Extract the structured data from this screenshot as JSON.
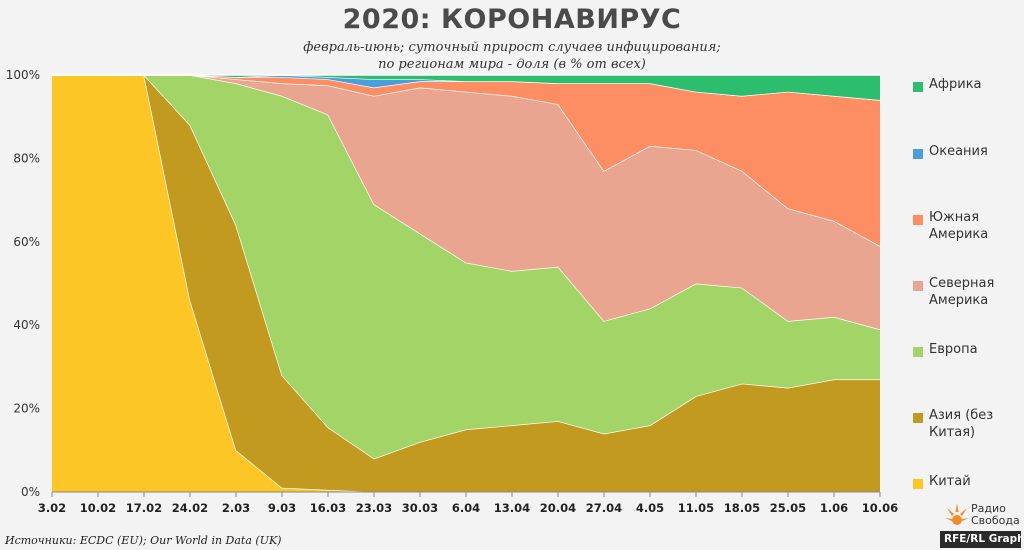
{
  "title": "2020: КОРОНАВИРУС",
  "subtitle_line1": "февраль-июнь; суточный прирост случаев инфицирования;",
  "subtitle_line2": "по регионам мира - доля (в % от всех)",
  "source": "Источники: ECDC (EU); Our World in Data (UK)",
  "logo": {
    "line1": "Радио",
    "line2": "Свобода",
    "bar": "RFE/RL Graphics"
  },
  "chart_data": {
    "type": "area",
    "stacked": true,
    "x": [
      "3.02",
      "10.02",
      "17.02",
      "24.02",
      "2.03",
      "9.03",
      "16.03",
      "23.03",
      "30.03",
      "6.04",
      "13.04",
      "20.04",
      "27.04",
      "4.05",
      "11.05",
      "18.05",
      "25.05",
      "1.06",
      "10.06"
    ],
    "ylim": [
      0,
      100
    ],
    "yticks": [
      "0%",
      "20%",
      "40%",
      "60%",
      "80%",
      "100%"
    ],
    "grid": true,
    "legend_position": "right",
    "series": [
      {
        "name": "Китай",
        "color": "#fcc627",
        "values": [
          100,
          100,
          100,
          46,
          10,
          1,
          0.5,
          0,
          0,
          0,
          0,
          0,
          0,
          0,
          0,
          0,
          0,
          0,
          0
        ]
      },
      {
        "name": "Азия (без Китая)",
        "color": "#c29a20",
        "values": [
          0,
          0,
          0,
          42,
          54,
          27,
          15,
          8,
          12,
          15,
          16,
          17,
          14,
          16,
          23,
          26,
          25,
          27,
          27
        ]
      },
      {
        "name": "Европа",
        "color": "#a3d468",
        "values": [
          0,
          0,
          0,
          12,
          34,
          67,
          75,
          61,
          50,
          40,
          37,
          37,
          27,
          28,
          27,
          23,
          16,
          15,
          12
        ]
      },
      {
        "name": "Северная Америка",
        "color": "#e9a58f",
        "values": [
          0,
          0,
          0,
          0,
          1,
          3,
          7,
          26,
          35,
          41,
          42,
          39,
          36,
          39,
          32,
          28,
          27,
          23,
          20
        ]
      },
      {
        "name": "Южная Америка",
        "color": "#fd8d63",
        "values": [
          0,
          0,
          0,
          0,
          0.5,
          1.5,
          1.5,
          2,
          1.5,
          2.5,
          3.5,
          5,
          21,
          15,
          14,
          18,
          28,
          30,
          35
        ]
      },
      {
        "name": "Океания",
        "color": "#4b9edb",
        "values": [
          0,
          0,
          0,
          0,
          0,
          0.5,
          0.5,
          2,
          0.5,
          0,
          0,
          0,
          0,
          0,
          0,
          0,
          0,
          0,
          0
        ]
      },
      {
        "name": "Африка",
        "color": "#2dbd6e",
        "values": [
          0,
          0,
          0,
          0,
          0.5,
          1,
          0.5,
          1,
          1,
          1.5,
          1.5,
          2,
          2,
          2,
          4,
          5,
          4,
          5,
          6
        ]
      }
    ]
  }
}
